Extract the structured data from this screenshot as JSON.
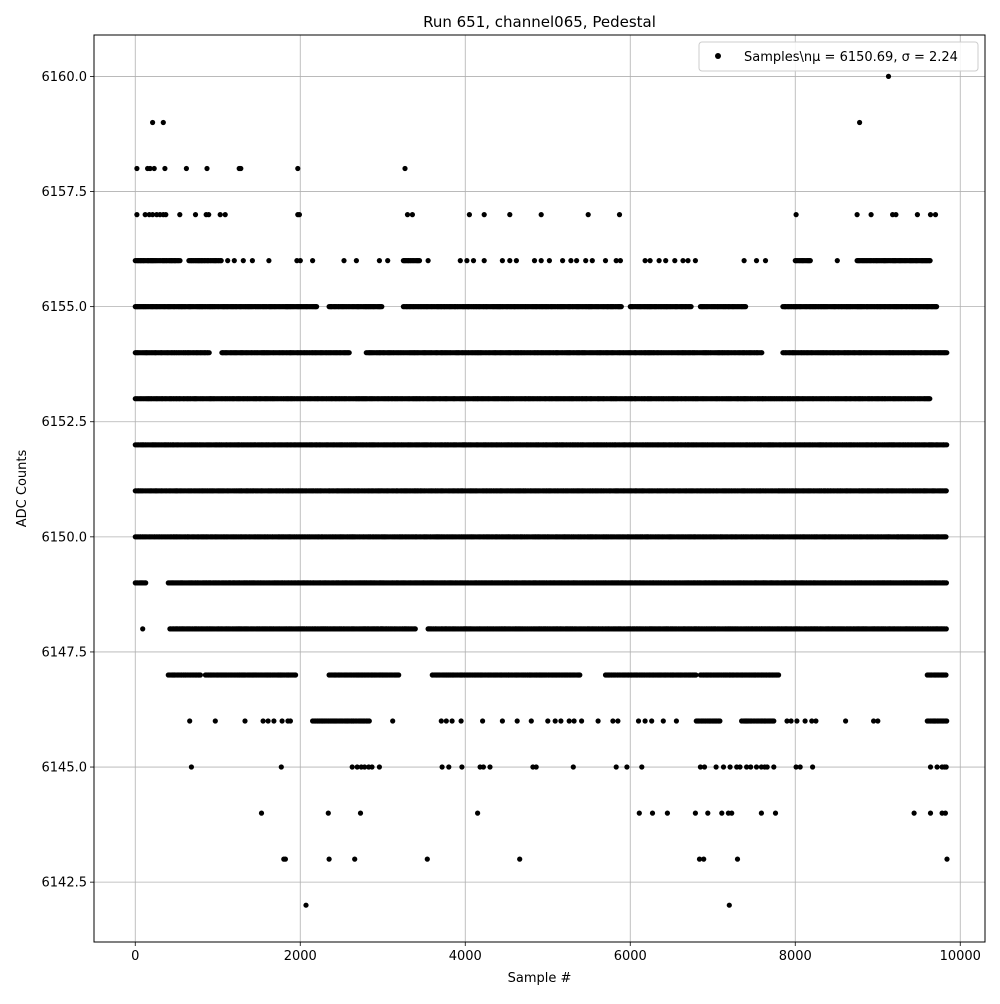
{
  "chart_data": {
    "type": "scatter",
    "title": "Run 651, channel065, Pedestal",
    "xlabel": "Sample #",
    "ylabel": "ADC Counts",
    "xlim": [
      -500,
      10300
    ],
    "ylim": [
      6141.2,
      6160.9
    ],
    "xticks": [
      0,
      2000,
      4000,
      6000,
      8000,
      10000
    ],
    "xtick_labels": [
      "0",
      "2000",
      "4000",
      "6000",
      "8000",
      "10000"
    ],
    "yticks": [
      6142.5,
      6145.0,
      6147.5,
      6150.0,
      6152.5,
      6155.0,
      6157.5,
      6160.0
    ],
    "ytick_labels": [
      "6142.5",
      "6145.0",
      "6147.5",
      "6150.0",
      "6152.5",
      "6155.0",
      "6157.5",
      "6160.0"
    ],
    "grid": true,
    "legend_position": "top-right",
    "legend_label": "Samples\\nμ = 6150.69, σ = 2.24",
    "marker_color": "#000000",
    "series": [
      {
        "name": "Samples\\nμ = 6150.69, σ = 2.24",
        "bands": [
          {
            "y": 6150,
            "segments": [
              [
                0,
                9840
              ]
            ]
          },
          {
            "y": 6151,
            "segments": [
              [
                0,
                9840
              ]
            ]
          },
          {
            "y": 6152,
            "segments": [
              [
                0,
                9840
              ]
            ]
          },
          {
            "y": 6149,
            "segments": [
              [
                0,
                130
              ],
              [
                400,
                9840
              ]
            ]
          },
          {
            "y": 6153,
            "segments": [
              [
                0,
                9640
              ]
            ]
          },
          {
            "y": 6154,
            "segments": [
              [
                0,
                900
              ],
              [
                1050,
                2600
              ],
              [
                2800,
                7600
              ],
              [
                7850,
                9840
              ]
            ]
          },
          {
            "y": 6148,
            "segments": [
              [
                420,
                3400
              ],
              [
                3550,
                9840
              ]
            ]
          },
          {
            "y": 6155,
            "segments": [
              [
                0,
                2200
              ],
              [
                2350,
                3000
              ],
              [
                3250,
                5900
              ],
              [
                6000,
                6750
              ],
              [
                6850,
                7400
              ],
              [
                7850,
                9720
              ]
            ]
          },
          {
            "y": 6147,
            "segments": [
              [
                400,
                800
              ],
              [
                850,
                1950
              ],
              [
                2350,
                3200
              ],
              [
                3600,
                5400
              ],
              [
                5700,
                6800
              ],
              [
                6850,
                7800
              ],
              [
                9600,
                9840
              ]
            ]
          },
          {
            "y": 6156,
            "segments": [
              [
                0,
                550
              ],
              [
                650,
                1050
              ],
              [
                3250,
                3450
              ],
              [
                8000,
                8200
              ],
              [
                8750,
                9640
              ]
            ]
          },
          {
            "y": 6146,
            "segments": [
              [
                2150,
                2850
              ],
              [
                6800,
                7100
              ],
              [
                7350,
                7750
              ],
              [
                9600,
                9840
              ]
            ]
          }
        ],
        "points": [
          [
            20,
            6158
          ],
          [
            150,
            6158
          ],
          [
            180,
            6158
          ],
          [
            230,
            6158
          ],
          [
            360,
            6158
          ],
          [
            620,
            6158
          ],
          [
            870,
            6158
          ],
          [
            1260,
            6158
          ],
          [
            1280,
            6158
          ],
          [
            1970,
            6158
          ],
          [
            3270,
            6158
          ],
          [
            210,
            6159
          ],
          [
            340,
            6159
          ],
          [
            8780,
            6159
          ],
          [
            9130,
            6160
          ],
          [
            20,
            6157
          ],
          [
            120,
            6157
          ],
          [
            170,
            6157
          ],
          [
            210,
            6157
          ],
          [
            260,
            6157
          ],
          [
            300,
            6157
          ],
          [
            340,
            6157
          ],
          [
            370,
            6157
          ],
          [
            540,
            6157
          ],
          [
            730,
            6157
          ],
          [
            860,
            6157
          ],
          [
            890,
            6157
          ],
          [
            1030,
            6157
          ],
          [
            1090,
            6157
          ],
          [
            1970,
            6157
          ],
          [
            1990,
            6157
          ],
          [
            3300,
            6157
          ],
          [
            3360,
            6157
          ],
          [
            4050,
            6157
          ],
          [
            4230,
            6157
          ],
          [
            4540,
            6157
          ],
          [
            4920,
            6157
          ],
          [
            5490,
            6157
          ],
          [
            5870,
            6157
          ],
          [
            8010,
            6157
          ],
          [
            8750,
            6157
          ],
          [
            8920,
            6157
          ],
          [
            9180,
            6157
          ],
          [
            9220,
            6157
          ],
          [
            9480,
            6157
          ],
          [
            9640,
            6157
          ],
          [
            9700,
            6157
          ],
          [
            1120,
            6156
          ],
          [
            1200,
            6156
          ],
          [
            1310,
            6156
          ],
          [
            1420,
            6156
          ],
          [
            1620,
            6156
          ],
          [
            1960,
            6156
          ],
          [
            2000,
            6156
          ],
          [
            2150,
            6156
          ],
          [
            2530,
            6156
          ],
          [
            2680,
            6156
          ],
          [
            2960,
            6156
          ],
          [
            3060,
            6156
          ],
          [
            3550,
            6156
          ],
          [
            3940,
            6156
          ],
          [
            4020,
            6156
          ],
          [
            4100,
            6156
          ],
          [
            4230,
            6156
          ],
          [
            4450,
            6156
          ],
          [
            4540,
            6156
          ],
          [
            4620,
            6156
          ],
          [
            4840,
            6156
          ],
          [
            4920,
            6156
          ],
          [
            5020,
            6156
          ],
          [
            5180,
            6156
          ],
          [
            5280,
            6156
          ],
          [
            5350,
            6156
          ],
          [
            5460,
            6156
          ],
          [
            5540,
            6156
          ],
          [
            5700,
            6156
          ],
          [
            5830,
            6156
          ],
          [
            5880,
            6156
          ],
          [
            6180,
            6156
          ],
          [
            6240,
            6156
          ],
          [
            6350,
            6156
          ],
          [
            6430,
            6156
          ],
          [
            6540,
            6156
          ],
          [
            6640,
            6156
          ],
          [
            6700,
            6156
          ],
          [
            6790,
            6156
          ],
          [
            7380,
            6156
          ],
          [
            7530,
            6156
          ],
          [
            7640,
            6156
          ],
          [
            8510,
            6156
          ],
          [
            660,
            6146
          ],
          [
            970,
            6146
          ],
          [
            1330,
            6146
          ],
          [
            1550,
            6146
          ],
          [
            1610,
            6146
          ],
          [
            1680,
            6146
          ],
          [
            1780,
            6146
          ],
          [
            1850,
            6146
          ],
          [
            1880,
            6146
          ],
          [
            3120,
            6146
          ],
          [
            3710,
            6146
          ],
          [
            3770,
            6146
          ],
          [
            3840,
            6146
          ],
          [
            3950,
            6146
          ],
          [
            4210,
            6146
          ],
          [
            4450,
            6146
          ],
          [
            4630,
            6146
          ],
          [
            4800,
            6146
          ],
          [
            5000,
            6146
          ],
          [
            5090,
            6146
          ],
          [
            5160,
            6146
          ],
          [
            5260,
            6146
          ],
          [
            5320,
            6146
          ],
          [
            5410,
            6146
          ],
          [
            5610,
            6146
          ],
          [
            5790,
            6146
          ],
          [
            5850,
            6146
          ],
          [
            6100,
            6146
          ],
          [
            6180,
            6146
          ],
          [
            6260,
            6146
          ],
          [
            6400,
            6146
          ],
          [
            6560,
            6146
          ],
          [
            7900,
            6146
          ],
          [
            7950,
            6146
          ],
          [
            8020,
            6146
          ],
          [
            8120,
            6146
          ],
          [
            8200,
            6146
          ],
          [
            8250,
            6146
          ],
          [
            8610,
            6146
          ],
          [
            8950,
            6146
          ],
          [
            9000,
            6146
          ],
          [
            680,
            6145
          ],
          [
            1770,
            6145
          ],
          [
            2630,
            6145
          ],
          [
            2690,
            6145
          ],
          [
            2740,
            6145
          ],
          [
            2780,
            6145
          ],
          [
            2830,
            6145
          ],
          [
            2870,
            6145
          ],
          [
            2960,
            6145
          ],
          [
            3720,
            6145
          ],
          [
            3800,
            6145
          ],
          [
            3960,
            6145
          ],
          [
            4180,
            6145
          ],
          [
            4220,
            6145
          ],
          [
            4300,
            6145
          ],
          [
            4820,
            6145
          ],
          [
            4860,
            6145
          ],
          [
            5310,
            6145
          ],
          [
            5830,
            6145
          ],
          [
            5960,
            6145
          ],
          [
            6140,
            6145
          ],
          [
            6850,
            6145
          ],
          [
            6900,
            6145
          ],
          [
            7040,
            6145
          ],
          [
            7130,
            6145
          ],
          [
            7210,
            6145
          ],
          [
            7290,
            6145
          ],
          [
            7330,
            6145
          ],
          [
            7410,
            6145
          ],
          [
            7460,
            6145
          ],
          [
            7530,
            6145
          ],
          [
            7590,
            6145
          ],
          [
            7630,
            6145
          ],
          [
            7660,
            6145
          ],
          [
            7740,
            6145
          ],
          [
            8010,
            6145
          ],
          [
            8060,
            6145
          ],
          [
            8210,
            6145
          ],
          [
            9640,
            6145
          ],
          [
            9720,
            6145
          ],
          [
            9780,
            6145
          ],
          [
            9810,
            6145
          ],
          [
            9830,
            6145
          ],
          [
            1530,
            6144
          ],
          [
            2340,
            6144
          ],
          [
            2730,
            6144
          ],
          [
            4150,
            6144
          ],
          [
            6110,
            6144
          ],
          [
            6270,
            6144
          ],
          [
            6450,
            6144
          ],
          [
            6790,
            6144
          ],
          [
            6940,
            6144
          ],
          [
            7110,
            6144
          ],
          [
            7190,
            6144
          ],
          [
            7230,
            6144
          ],
          [
            7590,
            6144
          ],
          [
            7760,
            6144
          ],
          [
            9440,
            6144
          ],
          [
            9640,
            6144
          ],
          [
            9780,
            6144
          ],
          [
            9820,
            6144
          ],
          [
            1800,
            6143
          ],
          [
            1820,
            6143
          ],
          [
            2350,
            6143
          ],
          [
            2660,
            6143
          ],
          [
            3540,
            6143
          ],
          [
            4660,
            6143
          ],
          [
            6840,
            6143
          ],
          [
            6890,
            6143
          ],
          [
            7300,
            6143
          ],
          [
            9840,
            6143
          ],
          [
            2070,
            6142
          ],
          [
            7200,
            6142
          ],
          [
            90,
            6148
          ]
        ]
      }
    ]
  }
}
